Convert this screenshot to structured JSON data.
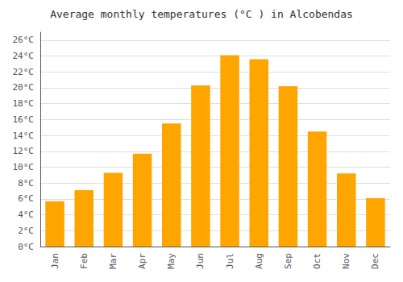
{
  "chart_data": {
    "type": "bar",
    "title": "Average monthly temperatures (°C ) in Alcobendas",
    "categories": [
      "Jan",
      "Feb",
      "Mar",
      "Apr",
      "May",
      "Jun",
      "Jul",
      "Aug",
      "Sep",
      "Oct",
      "Nov",
      "Dec"
    ],
    "values": [
      5.7,
      7.1,
      9.3,
      11.7,
      15.5,
      20.3,
      24.1,
      23.6,
      20.2,
      14.5,
      9.2,
      6.1
    ],
    "color": "#FFA500",
    "ylim": [
      0,
      27
    ],
    "yticks": [
      {
        "value": 0,
        "label": "0°C"
      },
      {
        "value": 2,
        "label": "2°C"
      },
      {
        "value": 4,
        "label": "4°C"
      },
      {
        "value": 6,
        "label": "6°C"
      },
      {
        "value": 8,
        "label": "8°C"
      },
      {
        "value": 10,
        "label": "10°C"
      },
      {
        "value": 12,
        "label": "12°C"
      },
      {
        "value": 14,
        "label": "14°C"
      },
      {
        "value": 16,
        "label": "16°C"
      },
      {
        "value": 18,
        "label": "18°C"
      },
      {
        "value": 20,
        "label": "20°C"
      },
      {
        "value": 22,
        "label": "22°C"
      },
      {
        "value": 24,
        "label": "24°C"
      },
      {
        "value": 26,
        "label": "26°C"
      }
    ],
    "grid": true
  }
}
